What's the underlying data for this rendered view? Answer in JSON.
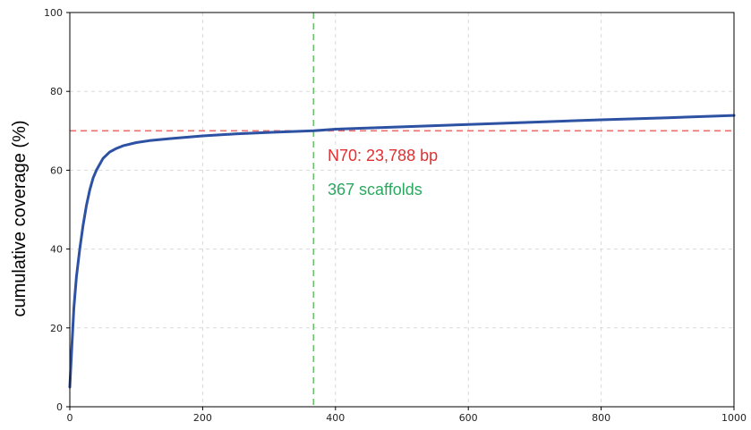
{
  "chart_data": {
    "type": "line",
    "title": "",
    "xlabel": "",
    "ylabel": "cumulative coverage (%)",
    "xlim": [
      0,
      1000
    ],
    "ylim": [
      0,
      100
    ],
    "xticks": [
      0,
      200,
      400,
      600,
      800,
      1000
    ],
    "yticks": [
      0,
      20,
      40,
      60,
      80,
      100
    ],
    "grid": true,
    "series": [
      {
        "color": "#2e52a3",
        "x": [
          0,
          3,
          6,
          10,
          15,
          20,
          25,
          30,
          35,
          40,
          50,
          60,
          70,
          80,
          100,
          120,
          150,
          200,
          250,
          300,
          367,
          400,
          500,
          600,
          700,
          800,
          900,
          1000
        ],
        "values": [
          5,
          15,
          25,
          33,
          40,
          46,
          51,
          55,
          58,
          60,
          63,
          64.6,
          65.5,
          66.2,
          67,
          67.5,
          68,
          68.7,
          69.2,
          69.6,
          70,
          70.4,
          71,
          71.6,
          72.2,
          72.8,
          73.3,
          73.9
        ]
      }
    ],
    "reference_lines": [
      {
        "orientation": "horizontal",
        "value": 70,
        "color": "#e8706e"
      },
      {
        "orientation": "vertical",
        "value": 367,
        "color": "#6cbf6c"
      }
    ],
    "annotations": [
      {
        "text": "N70: 23,788 bp",
        "color": "#e03030"
      },
      {
        "text": "367 scaffolds",
        "color": "#2aa860"
      }
    ]
  }
}
